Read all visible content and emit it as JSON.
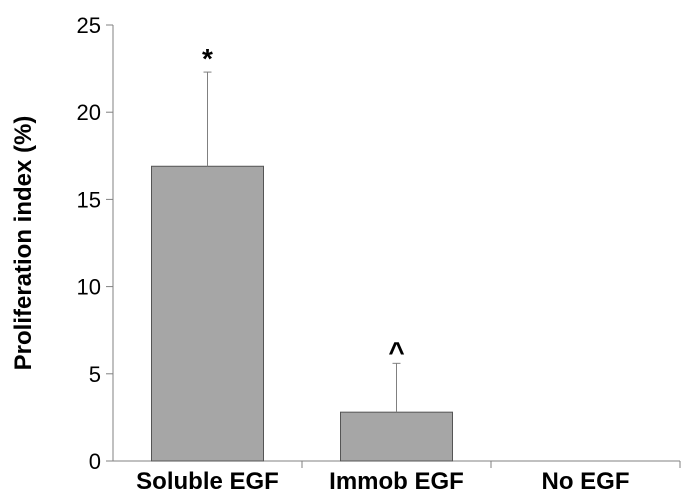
{
  "chart_data": {
    "type": "bar",
    "title": "",
    "xlabel": "",
    "ylabel": "Proliferation index (%)",
    "ylim": [
      0,
      25
    ],
    "yticks": [
      0,
      5,
      10,
      15,
      20,
      25
    ],
    "categories": [
      "Soluble EGF",
      "Immob EGF",
      "No EGF"
    ],
    "values": [
      16.9,
      2.8,
      0
    ],
    "error_upper": [
      5.4,
      2.8,
      0
    ],
    "annotations": [
      "*",
      "^",
      ""
    ],
    "bar_color": "#a6a6a6",
    "grid": false,
    "legend": "none"
  }
}
